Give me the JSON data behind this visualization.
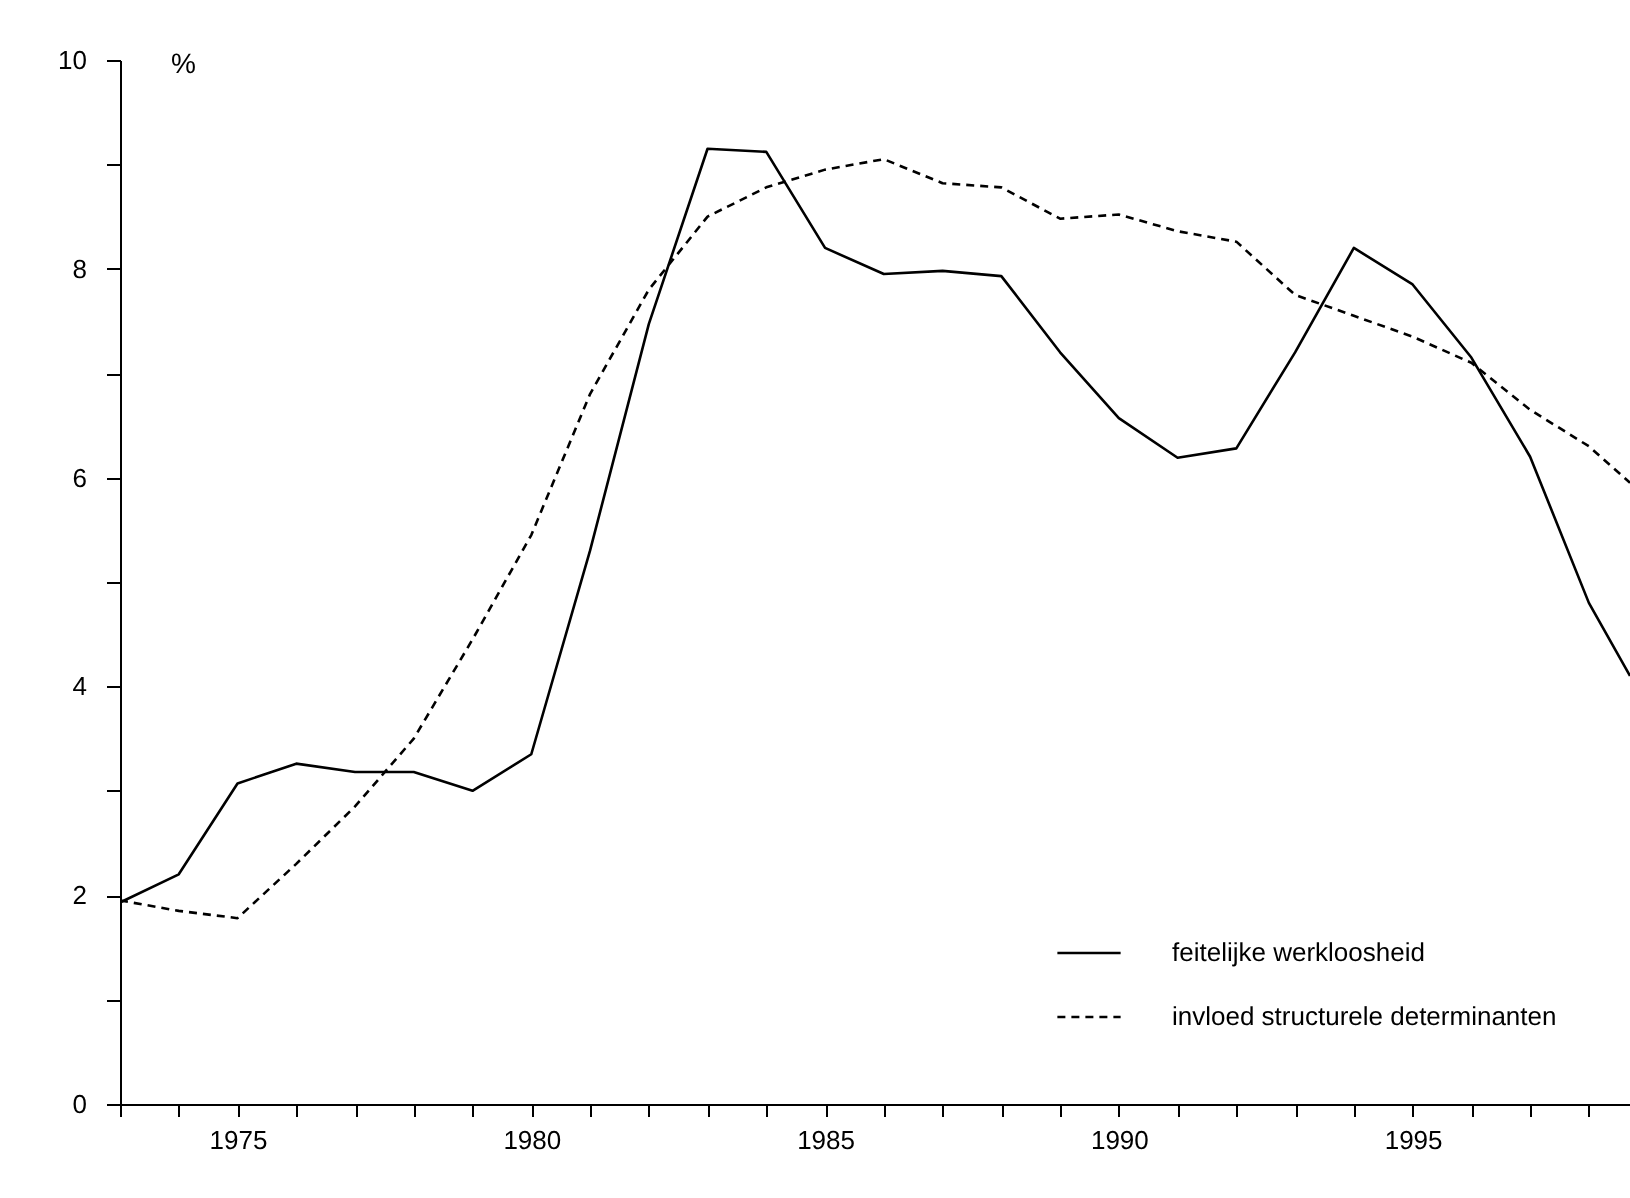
{
  "chart_data": {
    "type": "line",
    "ylabel": "%",
    "x": [
      1973,
      1974,
      1975,
      1976,
      1977,
      1978,
      1979,
      1980,
      1981,
      1982,
      1983,
      1984,
      1985,
      1986,
      1987,
      1988,
      1989,
      1990,
      1991,
      1992,
      1993,
      1994,
      1995,
      1996,
      1997,
      1998,
      1998.7
    ],
    "series": [
      {
        "name": "feitelijke werkloosheid",
        "color": "#000000",
        "line_style": "solid",
        "values": [
          1.93,
          2.2,
          3.07,
          3.26,
          3.18,
          3.18,
          3.0,
          3.35,
          5.3,
          7.47,
          9.15,
          9.12,
          8.2,
          7.95,
          7.98,
          7.93,
          7.2,
          6.57,
          6.19,
          6.28,
          7.2,
          8.2,
          7.85,
          7.15,
          6.2,
          4.8,
          4.1
        ]
      },
      {
        "name": "invloed structurele determinanten",
        "color": "#000000",
        "line_style": "dashed",
        "values": [
          1.95,
          1.85,
          1.78,
          2.3,
          2.85,
          3.5,
          4.45,
          5.45,
          6.8,
          7.8,
          8.5,
          8.78,
          8.95,
          9.05,
          8.82,
          8.78,
          8.48,
          8.52,
          8.36,
          8.26,
          7.75,
          7.55,
          7.35,
          7.1,
          6.65,
          6.3,
          5.95
        ]
      }
    ],
    "xlim": [
      1973,
      1998.7
    ],
    "xticks": [
      {
        "value": 1973,
        "label": null
      },
      {
        "value": 1974,
        "label": null
      },
      1975,
      {
        "value": 1976,
        "label": null
      },
      {
        "value": 1977,
        "label": null
      },
      {
        "value": 1978,
        "label": null
      },
      {
        "value": 1979,
        "label": null
      },
      1980,
      {
        "value": 1981,
        "label": null
      },
      {
        "value": 1982,
        "label": null
      },
      {
        "value": 1983,
        "label": null
      },
      {
        "value": 1984,
        "label": null
      },
      1985,
      {
        "value": 1986,
        "label": null
      },
      {
        "value": 1987,
        "label": null
      },
      {
        "value": 1988,
        "label": null
      },
      {
        "value": 1989,
        "label": null
      },
      1990,
      {
        "value": 1991,
        "label": null
      },
      {
        "value": 1992,
        "label": null
      },
      {
        "value": 1993,
        "label": null
      },
      {
        "value": 1994,
        "label": null
      },
      1995,
      {
        "value": 1996,
        "label": null
      },
      {
        "value": 1997,
        "label": null
      },
      {
        "value": 1998,
        "label": null
      }
    ],
    "ylim": [
      0,
      10
    ],
    "yticks": [
      0,
      {
        "value": 1,
        "label": null
      },
      2,
      {
        "value": 3,
        "label": null
      },
      4,
      {
        "value": 5,
        "label": null
      },
      6,
      {
        "value": 7,
        "label": null
      },
      8,
      {
        "value": 9,
        "label": null
      },
      10
    ],
    "grid": false,
    "legend": "bottom right",
    "marker": "none"
  }
}
